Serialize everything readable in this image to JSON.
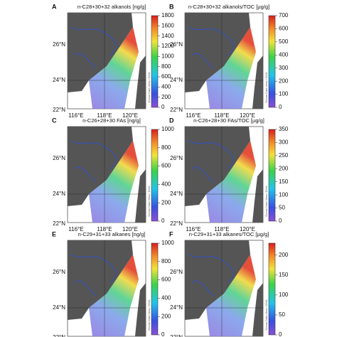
{
  "lat_labels": [
    "26°N",
    "24°N",
    "22°N"
  ],
  "lon_labels": [
    "116°E",
    "118°E",
    "120°E"
  ],
  "panels": [
    {
      "letter": "A",
      "title": "n-C28+30+32 alkanols [ng/g]",
      "watermark": "Ocean Data View / DIVA",
      "cbar_lim": [
        0,
        1800
      ],
      "cbar_ticks": [
        0,
        200,
        400,
        600,
        800,
        1000,
        1200,
        1400,
        1600,
        1800
      ]
    },
    {
      "letter": "B",
      "title": "n-C28+30+32 alkanols/TOC [µg/g]",
      "watermark": "Ocean Data View / DIVA",
      "cbar_lim": [
        0,
        700
      ],
      "cbar_ticks": [
        0,
        100,
        200,
        300,
        400,
        500,
        600,
        700
      ]
    },
    {
      "letter": "C",
      "title": "n-C26+28+30 FAs [ng/g]",
      "watermark": "Ocean Data View / DIVA",
      "cbar_lim": [
        0,
        1000
      ],
      "cbar_ticks": [
        0,
        200,
        400,
        600,
        800,
        1000
      ]
    },
    {
      "letter": "D",
      "title": "n-C26+28+30 FAs/TOC [µg/g]",
      "watermark": "Ocean Data View / DIVA",
      "cbar_lim": [
        0,
        350
      ],
      "cbar_ticks": [
        0,
        50,
        100,
        150,
        200,
        250,
        300,
        350
      ]
    },
    {
      "letter": "E",
      "title": "n-C29+31+33 alkanes [ng/g]",
      "watermark": "Ocean Data View / DIVA",
      "cbar_lim": [
        0,
        1000
      ],
      "cbar_ticks": [
        0,
        200,
        400,
        600,
        800,
        1000
      ]
    },
    {
      "letter": "F",
      "title": "n-C29+31+33 alkanes/TOC [µg/g]",
      "watermark": "Ocean Data View / DIVA",
      "cbar_lim": [
        0,
        230
      ],
      "cbar_ticks": [
        0,
        50,
        100,
        150,
        200
      ]
    }
  ]
}
